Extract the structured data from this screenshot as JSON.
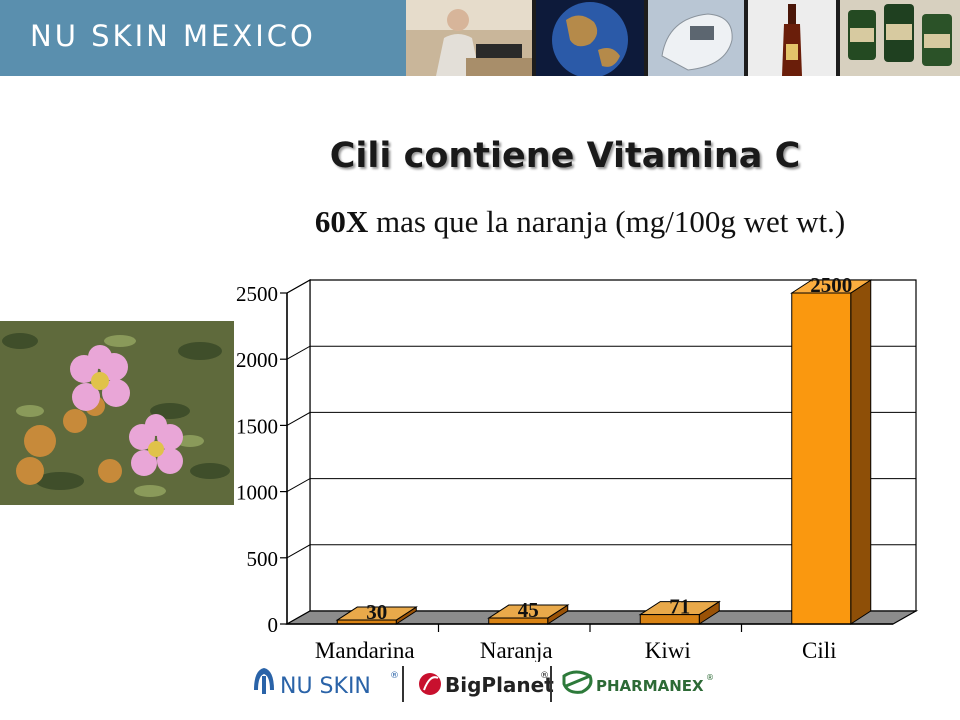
{
  "header": {
    "brand": "NU SKIN MEXICO",
    "photos": [
      "man-writing-photo",
      "globe-photo",
      "device-photo",
      "bottle-photo",
      "supplement-jars-photo"
    ]
  },
  "slide": {
    "title": "Cili contiene Vitamina C",
    "subtitle_bold": "60X",
    "subtitle_rest": " mas que la naranja (mg/100g wet wt.)"
  },
  "chart_data": {
    "type": "bar",
    "categories": [
      "Mandarina",
      "Naranja",
      "Kiwi",
      "Cili"
    ],
    "values": [
      30,
      45,
      71,
      2500
    ],
    "data_labels": [
      "30",
      "45",
      "71",
      "2500"
    ],
    "yticks": [
      0,
      500,
      1000,
      1500,
      2000,
      2500
    ],
    "ylim": [
      0,
      2500
    ],
    "grid": true,
    "style": "3d",
    "colors": {
      "small_front": "#d98314",
      "small_top": "#e9a94a",
      "small_side": "#9a5206",
      "big_front": "#fa980f",
      "big_top": "#fbad3f",
      "big_side": "#8e4f07",
      "floor": "#8c8c8c",
      "wall": "#ffffff"
    }
  },
  "footer": {
    "logos": [
      {
        "icon": "nu-skin-logo-icon",
        "text": "NU SKIN",
        "mark": "®"
      },
      {
        "icon": "bigplanet-logo-icon",
        "text": "BigPlanet",
        "mark": "®"
      },
      {
        "icon": "pharmanex-logo-icon",
        "text": "PHARMANEX",
        "mark": "®"
      }
    ]
  }
}
